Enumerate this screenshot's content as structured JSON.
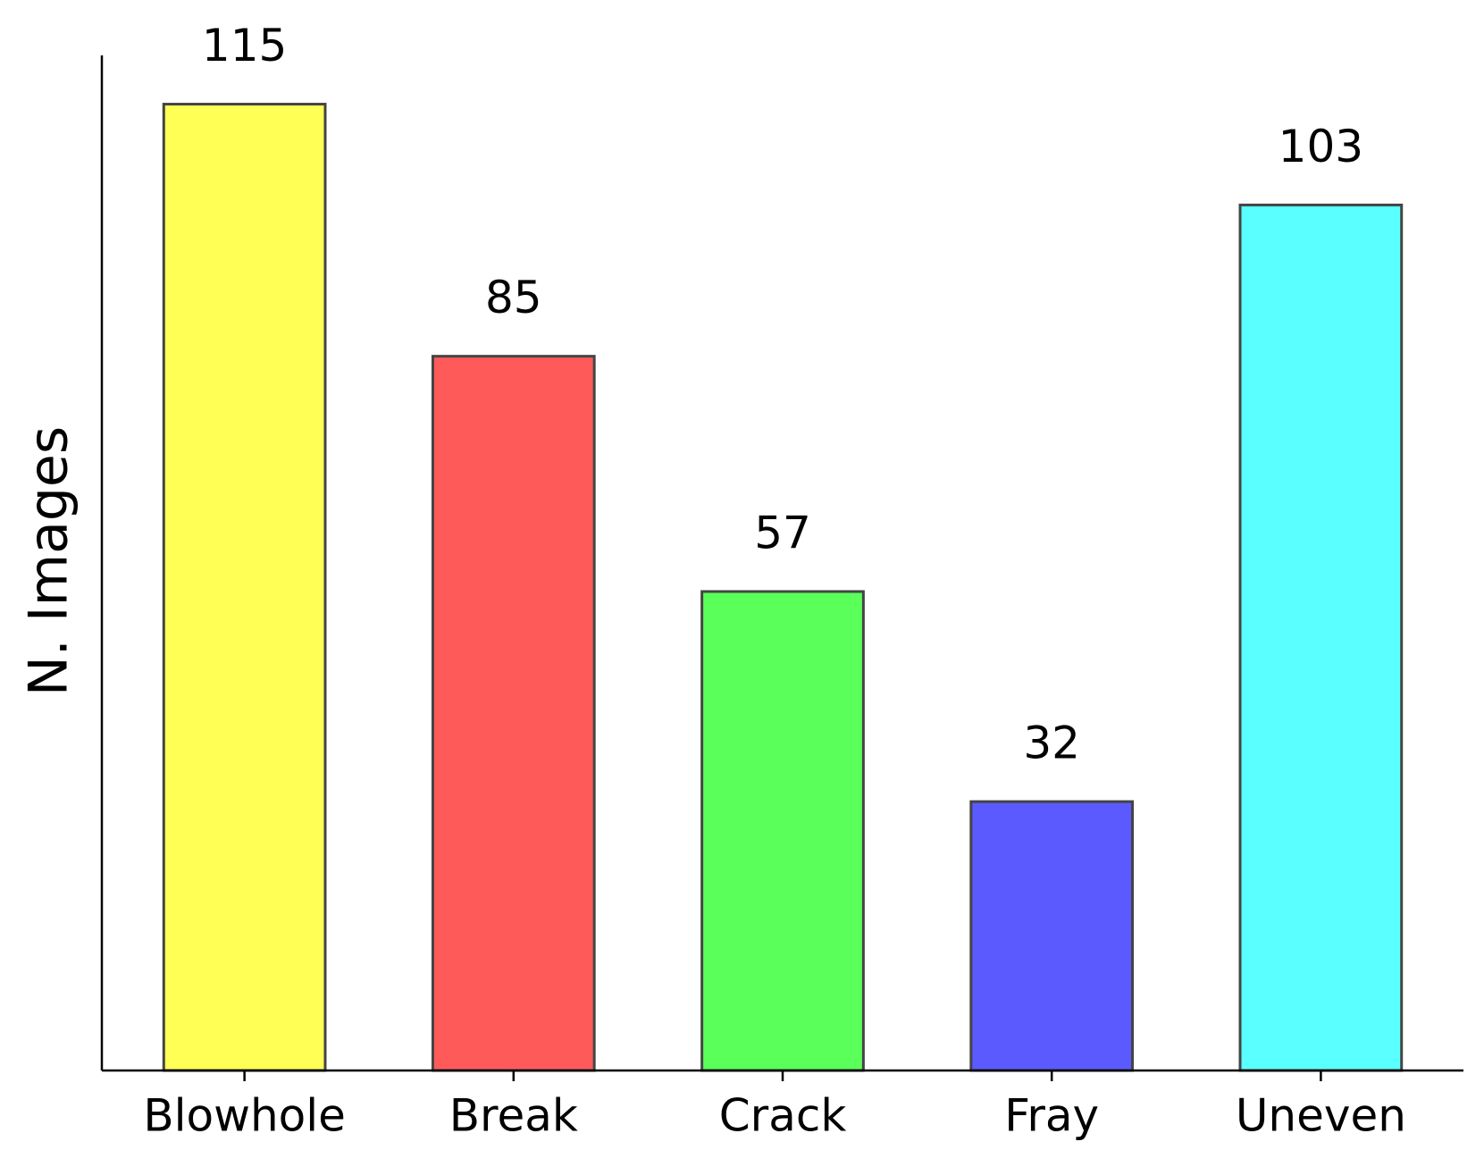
{
  "chart_data": {
    "type": "bar",
    "ylabel": "N. Images",
    "categories": [
      "Blowhole",
      "Break",
      "Crack",
      "Fray",
      "Uneven"
    ],
    "values": [
      115,
      85,
      57,
      32,
      103
    ],
    "colors": [
      "#ffff55",
      "#ff5a5a",
      "#5aff5a",
      "#5a5aff",
      "#5affff"
    ],
    "ylim": [
      0,
      120.8
    ]
  }
}
